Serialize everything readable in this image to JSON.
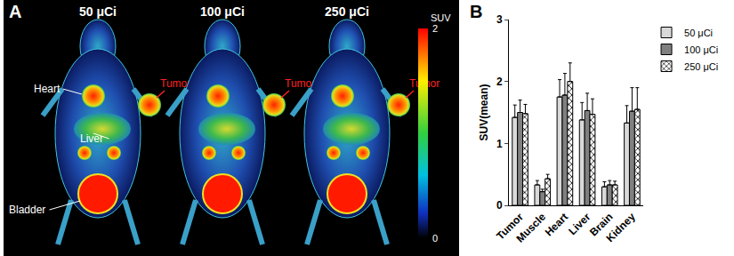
{
  "panel_labels": [
    "A",
    "B"
  ],
  "image_panel": {
    "doses": [
      "50 μCi",
      "100 μCi",
      "250 μCi"
    ],
    "organ_labels": [
      "Heart",
      "Liver",
      "Bladder"
    ],
    "tumor_label": "Tumor",
    "colorbar": {
      "title": "SUV",
      "range": [
        0,
        2
      ],
      "ticks": [
        0,
        2
      ]
    }
  },
  "chart_data": {
    "type": "bar",
    "y_label": "SUV(mean)",
    "categories": [
      "Tumor",
      "Muscle",
      "Heart",
      "Liver",
      "Brain",
      "Kidney"
    ],
    "series": [
      {
        "name": "50 μCi",
        "color": "#d9d9d9",
        "values": [
          1.42,
          0.33,
          1.75,
          1.38,
          0.3,
          1.33
        ],
        "errors": [
          0.2,
          0.07,
          0.28,
          0.28,
          0.08,
          0.28
        ]
      },
      {
        "name": "100 μCi",
        "color": "#808080",
        "values": [
          1.5,
          0.22,
          1.78,
          1.53,
          0.33,
          1.52
        ],
        "errors": [
          0.2,
          0.04,
          0.35,
          0.28,
          0.07,
          0.38
        ]
      },
      {
        "name": "250 μCi",
        "color": "#ffffff",
        "marker": "x",
        "values": [
          1.48,
          0.43,
          2.0,
          1.47,
          0.33,
          1.55
        ],
        "errors": [
          0.15,
          0.07,
          0.3,
          0.25,
          0.06,
          0.35
        ]
      }
    ],
    "ylim": [
      0,
      3
    ],
    "yticks": [
      0,
      1,
      2,
      3
    ],
    "grid": false,
    "legend": "right"
  }
}
